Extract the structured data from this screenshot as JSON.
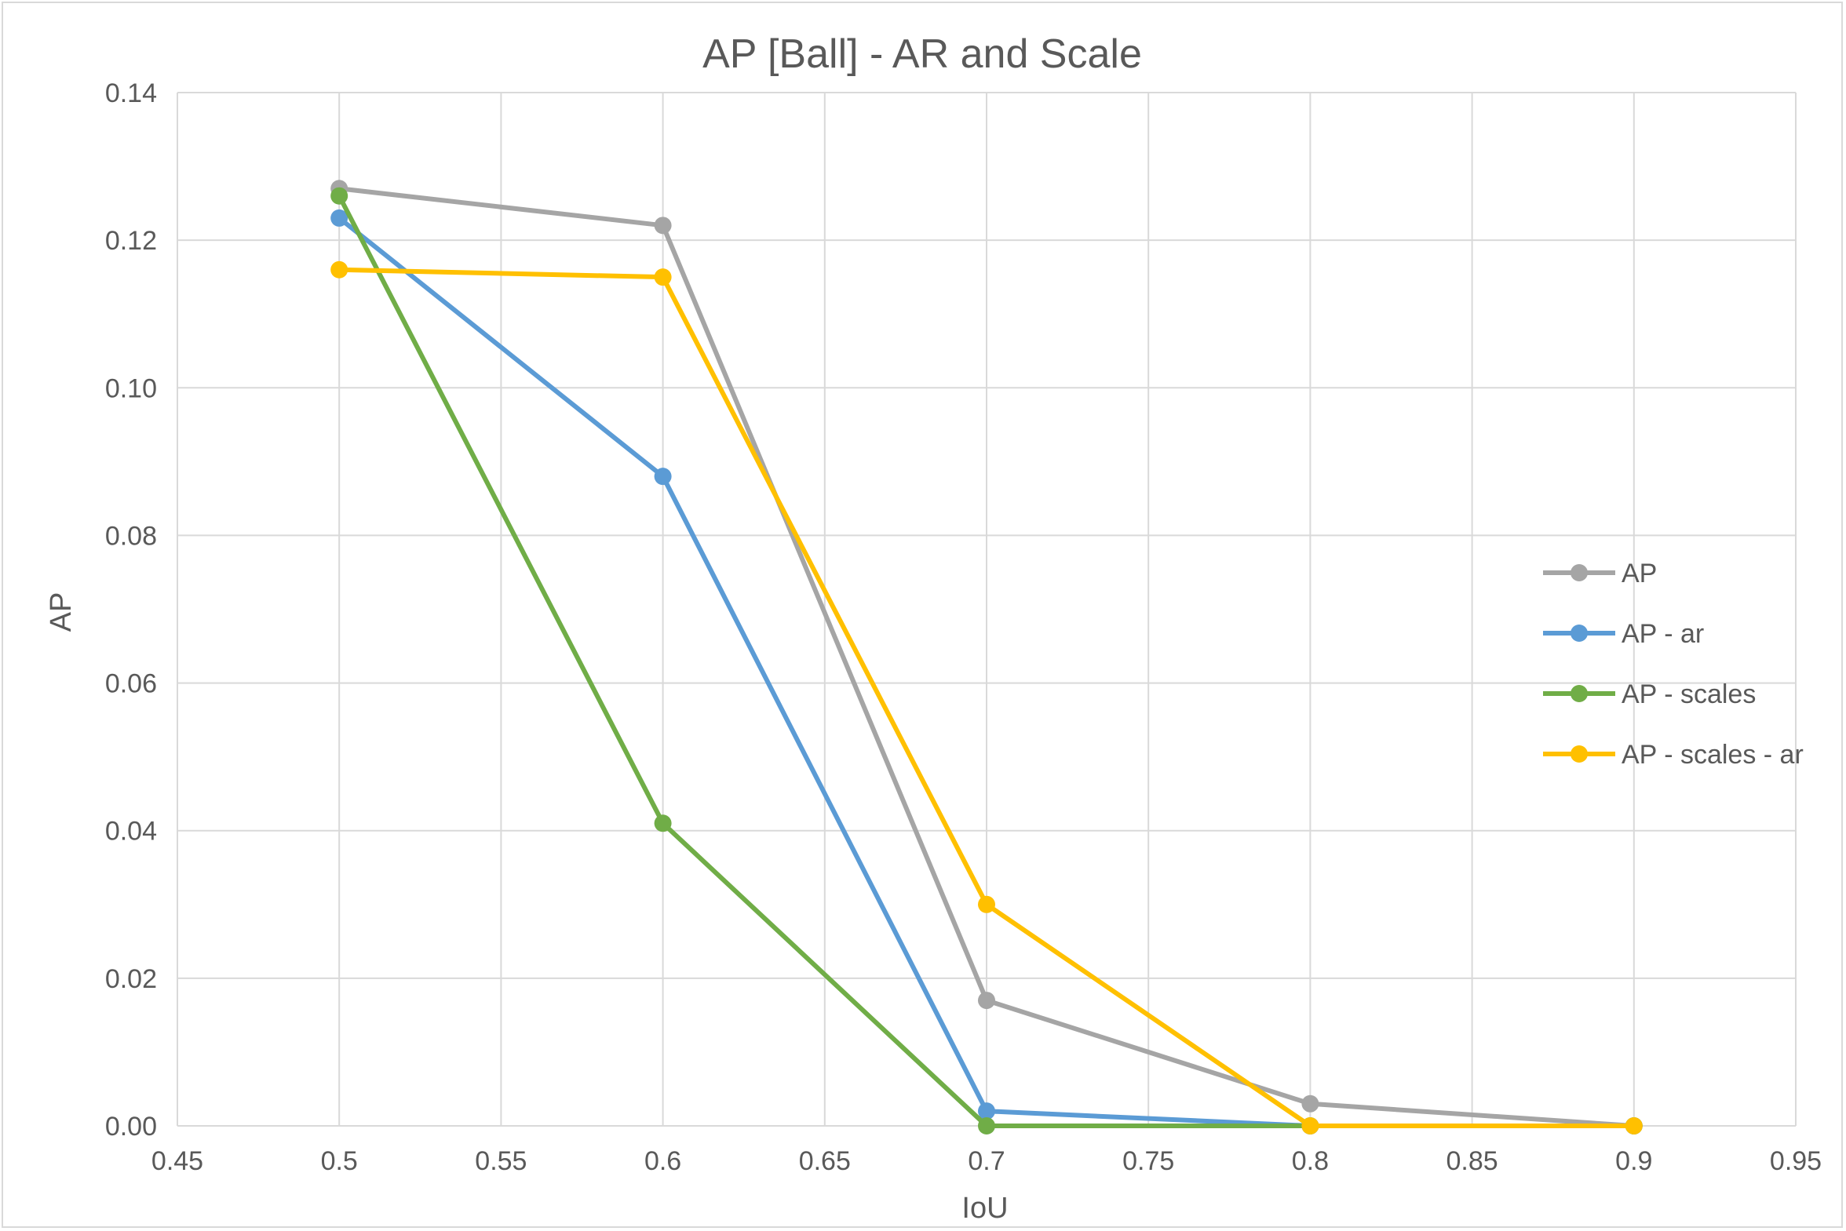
{
  "chart_data": {
    "type": "scatter",
    "title": "AP [Ball] - AR and Scale",
    "xlabel": "IoU",
    "ylabel": "AP",
    "xlim": [
      0.45,
      0.95
    ],
    "ylim": [
      0,
      0.14
    ],
    "x_ticks": [
      "0.45",
      "0.5",
      "0.55",
      "0.6",
      "0.65",
      "0.7",
      "0.75",
      "0.8",
      "0.85",
      "0.9",
      "0.95"
    ],
    "y_ticks": [
      "0.00",
      "0.02",
      "0.04",
      "0.06",
      "0.08",
      "0.10",
      "0.12",
      "0.14"
    ],
    "grid": true,
    "legend_position": "right",
    "series": [
      {
        "name": "AP",
        "color": "#a5a5a5",
        "points": [
          [
            0.5,
            0.127
          ],
          [
            0.6,
            0.122
          ],
          [
            0.7,
            0.017
          ],
          [
            0.8,
            0.003
          ],
          [
            0.9,
            0.0
          ]
        ]
      },
      {
        "name": "AP - ar",
        "color": "#5b9bd5",
        "points": [
          [
            0.5,
            0.123
          ],
          [
            0.6,
            0.088
          ],
          [
            0.7,
            0.002
          ],
          [
            0.8,
            0.0
          ],
          [
            0.9,
            0.0
          ]
        ]
      },
      {
        "name": "AP - scales",
        "color": "#70ad47",
        "points": [
          [
            0.5,
            0.126
          ],
          [
            0.6,
            0.041
          ],
          [
            0.7,
            0.0
          ],
          [
            0.8,
            0.0
          ],
          [
            0.9,
            0.0
          ]
        ]
      },
      {
        "name": "AP - scales - ar",
        "color": "#ffc000",
        "points": [
          [
            0.5,
            0.116
          ],
          [
            0.6,
            0.115
          ],
          [
            0.7,
            0.03
          ],
          [
            0.8,
            0.0
          ],
          [
            0.9,
            0.0
          ]
        ]
      }
    ]
  }
}
